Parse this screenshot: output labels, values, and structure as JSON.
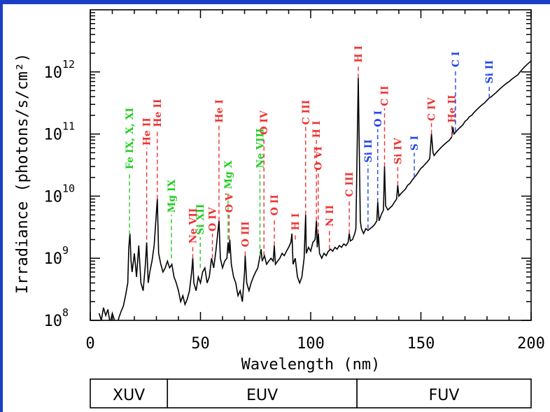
{
  "chart_data": {
    "type": "line",
    "xlabel": "Wavelength (nm)",
    "ylabel": "Irradiance (photons/s/cm²)",
    "xlim": [
      0,
      200
    ],
    "ylim": [
      100000000.0,
      10000000000000.0
    ],
    "yscale": "log",
    "xticks": [
      {
        "value": 0,
        "label": "0"
      },
      {
        "value": 50,
        "label": "50"
      },
      {
        "value": 100,
        "label": "100"
      },
      {
        "value": 150,
        "label": "150"
      },
      {
        "value": 200,
        "label": "200"
      }
    ],
    "yticks": [
      {
        "value": 100000000.0,
        "base": "10",
        "exp": "8"
      },
      {
        "value": 1000000000.0,
        "base": "10",
        "exp": "9"
      },
      {
        "value": 10000000000.0,
        "base": "10",
        "exp": "10"
      },
      {
        "value": 100000000000.0,
        "base": "10",
        "exp": "11"
      },
      {
        "value": 1000000000000.0,
        "base": "10",
        "exp": "12"
      }
    ],
    "spectrum": [
      [
        4,
        130000000.0
      ],
      [
        5,
        100000000.0
      ],
      [
        6,
        160000000.0
      ],
      [
        7,
        120000000.0
      ],
      [
        8,
        150000000.0
      ],
      [
        9,
        90000000.0
      ],
      [
        10,
        130000000.0
      ],
      [
        11,
        100000000.0
      ],
      [
        12,
        80000000.0
      ],
      [
        13,
        110000000.0
      ],
      [
        14,
        140000000.0
      ],
      [
        15,
        170000000.0
      ],
      [
        16,
        250000000.0
      ],
      [
        17,
        400000000.0
      ],
      [
        17.5,
        1500000000.0
      ],
      [
        18,
        2500000000.0
      ],
      [
        18.5,
        900000000.0
      ],
      [
        19,
        600000000.0
      ],
      [
        20,
        1200000000.0
      ],
      [
        21,
        500000000.0
      ],
      [
        22,
        1600000000.0
      ],
      [
        23,
        400000000.0
      ],
      [
        24,
        300000000.0
      ],
      [
        25,
        800000000.0
      ],
      [
        25.6,
        1800000000.0
      ],
      [
        26.3,
        400000000.0
      ],
      [
        27,
        600000000.0
      ],
      [
        28,
        900000000.0
      ],
      [
        29,
        1600000000.0
      ],
      [
        30.4,
        9000000000.0
      ],
      [
        31,
        1200000000.0
      ],
      [
        32,
        800000000.0
      ],
      [
        33,
        600000000.0
      ],
      [
        34,
        700000000.0
      ],
      [
        35,
        900000000.0
      ],
      [
        36,
        700000000.0
      ],
      [
        37,
        800000000.0
      ],
      [
        38,
        500000000.0
      ],
      [
        39,
        400000000.0
      ],
      [
        40,
        300000000.0
      ],
      [
        41,
        200000000.0
      ],
      [
        42,
        250000000.0
      ],
      [
        43,
        180000000.0
      ],
      [
        44,
        220000000.0
      ],
      [
        45,
        300000000.0
      ],
      [
        46,
        600000000.0
      ],
      [
        46.5,
        1000000000.0
      ],
      [
        47,
        400000000.0
      ],
      [
        48,
        300000000.0
      ],
      [
        49,
        500000000.0
      ],
      [
        50,
        400000000.0
      ],
      [
        51,
        600000000.0
      ],
      [
        52,
        700000000.0
      ],
      [
        53,
        400000000.0
      ],
      [
        54,
        500000000.0
      ],
      [
        55,
        1000000000.0
      ],
      [
        56,
        700000000.0
      ],
      [
        57,
        1300000000.0
      ],
      [
        58.4,
        4000000000.0
      ],
      [
        59,
        1000000000.0
      ],
      [
        60,
        700000000.0
      ],
      [
        61,
        900000000.0
      ],
      [
        62,
        1000000000.0
      ],
      [
        62.5,
        1800000000.0
      ],
      [
        63,
        1200000000.0
      ],
      [
        63.3,
        2000000000.0
      ],
      [
        64,
        800000000.0
      ],
      [
        65,
        500000000.0
      ],
      [
        66,
        400000000.0
      ],
      [
        67,
        250000000.0
      ],
      [
        68,
        300000000.0
      ],
      [
        69,
        200000000.0
      ],
      [
        70,
        600000000.0
      ],
      [
        70.3,
        1100000000.0
      ],
      [
        71,
        400000000.0
      ],
      [
        72,
        300000000.0
      ],
      [
        73,
        400000000.0
      ],
      [
        74,
        500000000.0
      ],
      [
        75,
        600000000.0
      ],
      [
        76,
        700000000.0
      ],
      [
        77,
        1100000000.0
      ],
      [
        77.5,
        1400000000.0
      ],
      [
        78,
        900000000.0
      ],
      [
        79,
        1100000000.0
      ],
      [
        80,
        800000000.0
      ],
      [
        81,
        900000000.0
      ],
      [
        82,
        1000000000.0
      ],
      [
        83,
        900000000.0
      ],
      [
        83.5,
        1600000000.0
      ],
      [
        84,
        800000000.0
      ],
      [
        85,
        900000000.0
      ],
      [
        86,
        1000000000.0
      ],
      [
        87,
        1200000000.0
      ],
      [
        88,
        1100000000.0
      ],
      [
        89,
        1300000000.0
      ],
      [
        90,
        1500000000.0
      ],
      [
        91,
        1800000000.0
      ],
      [
        91.5,
        2500000000.0
      ],
      [
        92,
        800000000.0
      ],
      [
        93,
        1000000000.0
      ],
      [
        94,
        500000000.0
      ],
      [
        95,
        400000000.0
      ],
      [
        96,
        500000000.0
      ],
      [
        97,
        1000000000.0
      ],
      [
        97.7,
        5000000000.0
      ],
      [
        98,
        1200000000.0
      ],
      [
        99,
        1500000000.0
      ],
      [
        100,
        1300000000.0
      ],
      [
        101,
        1800000000.0
      ],
      [
        102,
        2000000000.0
      ],
      [
        102.6,
        4000000000.0
      ],
      [
        103,
        1500000000.0
      ],
      [
        103.5,
        2500000000.0
      ],
      [
        104,
        1200000000.0
      ],
      [
        105,
        1000000000.0
      ],
      [
        106,
        1200000000.0
      ],
      [
        107,
        1100000000.0
      ],
      [
        108,
        1300000000.0
      ],
      [
        109,
        1400000000.0
      ],
      [
        110,
        1300000000.0
      ],
      [
        111,
        1500000000.0
      ],
      [
        112,
        1400000000.0
      ],
      [
        113,
        1600000000.0
      ],
      [
        114,
        1500000000.0
      ],
      [
        115,
        1700000000.0
      ],
      [
        116,
        1600000000.0
      ],
      [
        117,
        1800000000.0
      ],
      [
        117.5,
        2500000000.0
      ],
      [
        118,
        1900000000.0
      ],
      [
        119,
        2000000000.0
      ],
      [
        120,
        2500000000.0
      ],
      [
        120.5,
        3000000000.0
      ],
      [
        121.6,
        800000000000.0
      ],
      [
        122.5,
        4000000000.0
      ],
      [
        123,
        3000000000.0
      ],
      [
        124,
        2500000000.0
      ],
      [
        125,
        3000000000.0
      ],
      [
        126,
        2800000000.0
      ],
      [
        127,
        3000000000.0
      ],
      [
        128,
        3200000000.0
      ],
      [
        129,
        3500000000.0
      ],
      [
        130,
        4000000000.0
      ],
      [
        130.4,
        8000000000.0
      ],
      [
        131,
        4000000000.0
      ],
      [
        132,
        5000000000.0
      ],
      [
        133,
        6000000000.0
      ],
      [
        133.5,
        30000000000.0
      ],
      [
        134,
        7000000000.0
      ],
      [
        135,
        6000000000.0
      ],
      [
        136,
        6500000000.0
      ],
      [
        137,
        7000000000.0
      ],
      [
        138,
        8000000000.0
      ],
      [
        139,
        9000000000.0
      ],
      [
        139.5,
        15000000000.0
      ],
      [
        140,
        10000000000.0
      ],
      [
        141,
        11000000000.0
      ],
      [
        142,
        12000000000.0
      ],
      [
        143,
        13000000000.0
      ],
      [
        144,
        15000000000.0
      ],
      [
        145,
        16000000000.0
      ],
      [
        146,
        18000000000.0
      ],
      [
        147,
        20000000000.0
      ],
      [
        148,
        22000000000.0
      ],
      [
        149,
        25000000000.0
      ],
      [
        150,
        28000000000.0
      ],
      [
        151,
        30000000000.0
      ],
      [
        152,
        33000000000.0
      ],
      [
        153,
        36000000000.0
      ],
      [
        154,
        40000000000.0
      ],
      [
        154.8,
        100000000000.0
      ],
      [
        155.5,
        50000000000.0
      ],
      [
        156,
        45000000000.0
      ],
      [
        157,
        50000000000.0
      ],
      [
        158,
        55000000000.0
      ],
      [
        159,
        60000000000.0
      ],
      [
        160,
        65000000000.0
      ],
      [
        161,
        70000000000.0
      ],
      [
        162,
        75000000000.0
      ],
      [
        163,
        80000000000.0
      ],
      [
        164,
        90000000000.0
      ],
      [
        164.5,
        130000000000.0
      ],
      [
        165,
        100000000000.0
      ],
      [
        166,
        110000000000.0
      ],
      [
        167,
        120000000000.0
      ],
      [
        168,
        130000000000.0
      ],
      [
        169,
        140000000000.0
      ],
      [
        170,
        160000000000.0
      ],
      [
        171,
        170000000000.0
      ],
      [
        172,
        190000000000.0
      ],
      [
        173,
        200000000000.0
      ],
      [
        174,
        220000000000.0
      ],
      [
        175,
        240000000000.0
      ],
      [
        176,
        260000000000.0
      ],
      [
        177,
        280000000000.0
      ],
      [
        178,
        300000000000.0
      ],
      [
        179,
        320000000000.0
      ],
      [
        180,
        350000000000.0
      ],
      [
        181,
        380000000000.0
      ],
      [
        182,
        400000000000.0
      ],
      [
        183,
        430000000000.0
      ],
      [
        184,
        460000000000.0
      ],
      [
        185,
        500000000000.0
      ],
      [
        186,
        540000000000.0
      ],
      [
        187,
        580000000000.0
      ],
      [
        188,
        620000000000.0
      ],
      [
        189,
        660000000000.0
      ],
      [
        190,
        700000000000.0
      ],
      [
        191,
        750000000000.0
      ],
      [
        192,
        800000000000.0
      ],
      [
        193,
        850000000000.0
      ],
      [
        194,
        900000000000.0
      ],
      [
        195,
        1000000000000.0
      ],
      [
        196,
        1100000000000.0
      ],
      [
        197,
        1200000000000.0
      ],
      [
        198,
        1300000000000.0
      ],
      [
        199,
        1400000000000.0
      ],
      [
        200,
        1500000000000.0
      ]
    ],
    "lines": [
      {
        "label": "Fe IX, X, XI",
        "x": 17.8,
        "y_from": 2400000000.0,
        "y_to": 25000000000.0,
        "color": "#22cc22"
      },
      {
        "label": "He II",
        "x": 25.6,
        "y_from": 2000000000.0,
        "y_to": 60000000000.0,
        "color": "#ee3333"
      },
      {
        "label": "He II",
        "x": 30.4,
        "y_from": 9000000000.0,
        "y_to": 120000000000.0,
        "color": "#ee3333"
      },
      {
        "label": "Mg IX",
        "x": 36.8,
        "y_from": 1000000000.0,
        "y_to": 5000000000.0,
        "color": "#22cc22"
      },
      {
        "label": "Ne VII",
        "x": 46.5,
        "y_from": 1000000000.0,
        "y_to": 1600000000.0,
        "color": "#ee3333"
      },
      {
        "label": "Si XII",
        "x": 49.9,
        "y_from": 700000000.0,
        "y_to": 2200000000.0,
        "color": "#22cc22"
      },
      {
        "label": "O IV",
        "x": 55.4,
        "y_from": 1000000000.0,
        "y_to": 2500000000.0,
        "color": "#ee3333"
      },
      {
        "label": "He I",
        "x": 58.4,
        "y_from": 4000000000.0,
        "y_to": 140000000000.0,
        "color": "#ee3333"
      },
      {
        "label": "Mg X",
        "x": 62.5,
        "y_from": 2000000000.0,
        "y_to": 12000000000.0,
        "color": "#22cc22"
      },
      {
        "label": "O V",
        "x": 63.0,
        "y_from": 2000000000.0,
        "y_to": 5000000000.0,
        "color": "#ee3333"
      },
      {
        "label": "O III",
        "x": 70.3,
        "y_from": 1100000000.0,
        "y_to": 1400000000.0,
        "color": "#ee3333"
      },
      {
        "label": "Ne VIII",
        "x": 77.0,
        "y_from": 1100000000.0,
        "y_to": 26000000000.0,
        "color": "#22cc22"
      },
      {
        "label": "O IV",
        "x": 78.8,
        "y_from": 1100000000.0,
        "y_to": 90000000000.0,
        "color": "#ee3333"
      },
      {
        "label": "O II",
        "x": 83.5,
        "y_from": 1600000000.0,
        "y_to": 4500000000.0,
        "color": "#ee3333"
      },
      {
        "label": "H I",
        "x": 93.0,
        "y_from": 2000000000.0,
        "y_to": 2600000000.0,
        "color": "#ee3333"
      },
      {
        "label": "C III",
        "x": 97.7,
        "y_from": 5000000000.0,
        "y_to": 130000000000.0,
        "color": "#ee3333"
      },
      {
        "label": "H I",
        "x": 102.6,
        "y_from": 4000000000.0,
        "y_to": 80000000000.0,
        "color": "#ee3333"
      },
      {
        "label": "O VI",
        "x": 103.4,
        "y_from": 2500000000.0,
        "y_to": 24000000000.0,
        "color": "#ee3333"
      },
      {
        "label": "N II",
        "x": 108.5,
        "y_from": 1400000000.0,
        "y_to": 3000000000.0,
        "color": "#ee3333"
      },
      {
        "label": "C III",
        "x": 117.5,
        "y_from": 2500000000.0,
        "y_to": 9000000000.0,
        "color": "#ee3333"
      },
      {
        "label": "H I",
        "x": 121.6,
        "y_from": 800000000000.0,
        "y_to": 1300000000000.0,
        "color": "#ee3333"
      },
      {
        "label": "Si II",
        "x": 126.0,
        "y_from": 3000000000.0,
        "y_to": 32000000000.0,
        "color": "#2244ee"
      },
      {
        "label": "O I",
        "x": 130.4,
        "y_from": 8000000000.0,
        "y_to": 120000000000.0,
        "color": "#2244ee"
      },
      {
        "label": "C II",
        "x": 133.5,
        "y_from": 30000000000.0,
        "y_to": 260000000000.0,
        "color": "#ee3333"
      },
      {
        "label": "Si IV",
        "x": 139.5,
        "y_from": 15000000000.0,
        "y_to": 30000000000.0,
        "color": "#ee3333"
      },
      {
        "label": "S I",
        "x": 147.0,
        "y_from": 20000000000.0,
        "y_to": 50000000000.0,
        "color": "#2244ee"
      },
      {
        "label": "C IV",
        "x": 154.8,
        "y_from": 100000000000.0,
        "y_to": 150000000000.0,
        "color": "#ee3333"
      },
      {
        "label": "He II",
        "x": 164.0,
        "y_from": 90000000000.0,
        "y_to": 140000000000.0,
        "color": "#ee3333"
      },
      {
        "label": "C I",
        "x": 165.7,
        "y_from": 110000000000.0,
        "y_to": 1100000000000.0,
        "color": "#2244ee"
      },
      {
        "label": "Si II",
        "x": 181.0,
        "y_from": 380000000000.0,
        "y_to": 600000000000.0,
        "color": "#2244ee"
      }
    ],
    "bands": [
      {
        "label": "XUV",
        "x0": 0,
        "x1": 35
      },
      {
        "label": "EUV",
        "x0": 35,
        "x1": 121
      },
      {
        "label": "FUV",
        "x0": 121,
        "x1": 200
      }
    ]
  }
}
